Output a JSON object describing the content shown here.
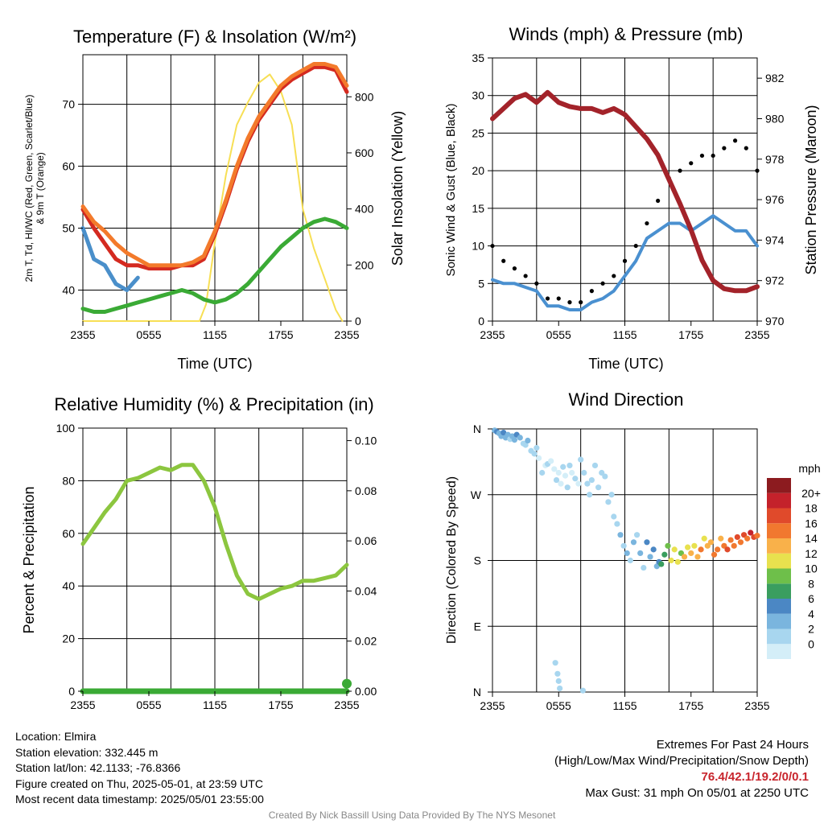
{
  "chart_data": [
    {
      "type": "line",
      "title": "Temperature (F) & Insolation (W/m²)",
      "xlabel": "Time (UTC)",
      "ylabel": "2m T, Td, HI/WC (Red, Green, Scarlet/Blue) & 9m T (Orange)",
      "y2label": "Solar Insolation (Yellow)",
      "x_ticks": [
        "2355",
        "0555",
        "1155",
        "1755",
        "2355"
      ],
      "ylim": [
        35,
        78
      ],
      "y_ticks": [
        40,
        50,
        60,
        70
      ],
      "y2lim": [
        0,
        950
      ],
      "y2_ticks": [
        0,
        200,
        400,
        600,
        800
      ],
      "series": [
        {
          "name": "2m T",
          "color": "#d42a20",
          "x": [
            0,
            1,
            2,
            3,
            4,
            5,
            6,
            7,
            8,
            9,
            10,
            11,
            12,
            13,
            14,
            15,
            16,
            17,
            18,
            19,
            20,
            21,
            22,
            23,
            24
          ],
          "values": [
            53,
            50,
            47.5,
            45,
            44,
            44,
            43.5,
            43.5,
            43.5,
            44,
            44,
            45,
            49,
            54,
            59.5,
            64,
            67.5,
            70,
            72.5,
            74,
            75,
            76,
            76,
            75.5,
            72
          ]
        },
        {
          "name": "Td",
          "color": "#3aaa35",
          "x": [
            0,
            1,
            2,
            3,
            4,
            5,
            6,
            7,
            8,
            9,
            10,
            11,
            12,
            13,
            14,
            15,
            16,
            17,
            18,
            19,
            20,
            21,
            22,
            23,
            24
          ],
          "values": [
            37,
            36.5,
            36.5,
            37,
            37.5,
            38,
            38.5,
            39,
            39.5,
            40,
            39.5,
            38.5,
            38,
            38.5,
            39.5,
            41,
            43,
            45,
            47,
            48.5,
            50,
            51,
            51.5,
            51,
            50
          ]
        },
        {
          "name": "HI/WC",
          "color": "#4a8fca",
          "x": [
            0,
            1,
            2,
            3,
            4,
            5
          ],
          "values": [
            50,
            45,
            44,
            41,
            40,
            42
          ]
        },
        {
          "name": "9m T",
          "color": "#f37a2b",
          "x": [
            0,
            1,
            2,
            3,
            4,
            5,
            6,
            7,
            8,
            9,
            10,
            11,
            12,
            13,
            14,
            15,
            16,
            17,
            18,
            19,
            20,
            21,
            22,
            23,
            24
          ],
          "values": [
            53.5,
            51,
            49.5,
            47.5,
            46,
            45,
            44,
            44,
            44,
            44,
            44.5,
            45.5,
            49.5,
            54.5,
            60,
            64.5,
            68,
            70.5,
            73,
            74.5,
            75.5,
            76.5,
            76.5,
            76,
            73
          ]
        },
        {
          "name": "Solar Insolation",
          "color": "#f7df55",
          "axis": "y2",
          "x": [
            0,
            5,
            8,
            10.6,
            11.2,
            12,
            13,
            14,
            15,
            16,
            17,
            18,
            19,
            20,
            21,
            22,
            23,
            23.6
          ],
          "values": [
            0,
            0,
            0,
            0,
            60,
            280,
            520,
            700,
            780,
            850,
            880,
            820,
            700,
            400,
            260,
            150,
            40,
            0
          ]
        }
      ]
    },
    {
      "type": "line",
      "title": "Winds (mph) & Pressure (mb)",
      "xlabel": "Time (UTC)",
      "ylabel": "Sonic Wind & Gust (Blue, Black)",
      "y2label": "Station Pressure (Maroon)",
      "x_ticks": [
        "2355",
        "0555",
        "1155",
        "1755",
        "2355"
      ],
      "ylim": [
        0,
        35
      ],
      "y_ticks": [
        0,
        5,
        10,
        15,
        20,
        25,
        30,
        35
      ],
      "y2lim": [
        970,
        983
      ],
      "y2_ticks": [
        970,
        972,
        974,
        976,
        978,
        980,
        982
      ],
      "series": [
        {
          "name": "Sonic Wind",
          "color": "#4a90d0",
          "x": [
            0,
            1,
            2,
            3,
            4,
            5,
            6,
            7,
            8,
            9,
            10,
            11,
            12,
            13,
            14,
            15,
            16,
            17,
            18,
            19,
            20,
            21,
            22,
            23,
            24
          ],
          "values": [
            5.5,
            5,
            5,
            4.5,
            4,
            2,
            2,
            1.5,
            1.5,
            2.5,
            3,
            4,
            6,
            8,
            11,
            12,
            13,
            13,
            12,
            13,
            14,
            13,
            12,
            12,
            10
          ]
        },
        {
          "name": "Gust",
          "color": "#000000",
          "marker": "dot",
          "x": [
            0,
            1,
            2,
            3,
            4,
            5,
            6,
            7,
            8,
            9,
            10,
            11,
            12,
            13,
            14,
            15,
            16,
            17,
            18,
            19,
            20,
            21,
            22,
            23,
            24
          ],
          "values": [
            10,
            8,
            7,
            6,
            5,
            3,
            3,
            2.5,
            2.5,
            4,
            5,
            6,
            8,
            10,
            13,
            16,
            19,
            20,
            21,
            22,
            22,
            23,
            24,
            23,
            20
          ]
        },
        {
          "name": "Station Pressure",
          "color": "#a3232a",
          "axis": "y2",
          "x": [
            0,
            1,
            2,
            3,
            4,
            5,
            6,
            7,
            8,
            9,
            10,
            11,
            12,
            13,
            14,
            15,
            16,
            17,
            18,
            19,
            20,
            21,
            22,
            23,
            24
          ],
          "values": [
            980,
            980.5,
            981,
            981.2,
            980.8,
            981.3,
            980.8,
            980.6,
            980.5,
            980.5,
            980.3,
            980.5,
            980.2,
            979.6,
            979,
            978.2,
            977,
            975.8,
            974.5,
            973,
            972,
            971.6,
            971.5,
            971.5,
            971.7
          ]
        }
      ]
    },
    {
      "type": "line",
      "title": "Relative Humidity (%) & Precipitation (in)",
      "xlabel": "",
      "ylabel": "Percent & Precipitation",
      "x_ticks": [
        "2355",
        "0555",
        "1155",
        "1755",
        "2355"
      ],
      "ylim": [
        0,
        100
      ],
      "y_ticks": [
        0,
        20,
        40,
        60,
        80,
        100
      ],
      "y2lim": [
        0,
        0.105
      ],
      "y2_ticks": [
        "0.00",
        "0.02",
        "0.04",
        "0.06",
        "0.08",
        "0.10"
      ],
      "series": [
        {
          "name": "Relative Humidity",
          "color": "#8cc63f",
          "x": [
            0,
            1,
            2,
            3,
            4,
            5,
            6,
            7,
            8,
            9,
            10,
            11,
            12,
            13,
            14,
            15,
            16,
            17,
            18,
            19,
            20,
            21,
            22,
            23,
            24
          ],
          "values": [
            56,
            62,
            68,
            73,
            80,
            81,
            83,
            85,
            84,
            86,
            86,
            80,
            70,
            56,
            44,
            37,
            35,
            37,
            39,
            40,
            42,
            42,
            43,
            44,
            48
          ]
        },
        {
          "name": "Precipitation",
          "color": "#3aaa35",
          "axis": "y2",
          "x": [
            0,
            24
          ],
          "values": [
            0,
            0
          ]
        }
      ]
    },
    {
      "type": "scatter",
      "title": "Wind Direction",
      "xlabel": "",
      "ylabel": "Direction (Colored By Speed)",
      "x_ticks": [
        "2355",
        "0555",
        "1155",
        "1755",
        "2355"
      ],
      "y_ticks": [
        "N",
        "E",
        "S",
        "W",
        "N"
      ],
      "ylim": [
        0,
        360
      ],
      "colorbar_title": "mph",
      "colorbar_labels": [
        "0",
        "2",
        "4",
        "6",
        "8",
        "10",
        "12",
        "14",
        "16",
        "18",
        "20+"
      ],
      "colorbar_colors": [
        "#d4eef8",
        "#a8d6ef",
        "#7ab5de",
        "#4b87c4",
        "#3a9e5f",
        "#6ebf4a",
        "#e8e14e",
        "#f9b14a",
        "#f1782f",
        "#e04a2b",
        "#c4222b",
        "#8c1b1f"
      ],
      "points": [
        [
          0.2,
          358,
          4
        ],
        [
          0.4,
          356,
          6
        ],
        [
          0.6,
          354,
          4
        ],
        [
          0.8,
          350,
          5
        ],
        [
          1,
          355,
          6
        ],
        [
          1.2,
          348,
          4
        ],
        [
          1.4,
          352,
          5
        ],
        [
          1.6,
          346,
          3
        ],
        [
          1.8,
          350,
          4
        ],
        [
          2,
          345,
          5
        ],
        [
          2.2,
          352,
          6
        ],
        [
          2.5,
          348,
          4
        ],
        [
          2.8,
          340,
          3
        ],
        [
          3,
          338,
          2
        ],
        [
          3.2,
          344,
          4
        ],
        [
          3.5,
          330,
          2
        ],
        [
          3.8,
          326,
          3
        ],
        [
          4,
          334,
          2
        ],
        [
          4.2,
          320,
          1
        ],
        [
          4.5,
          300,
          2
        ],
        [
          4.8,
          310,
          1
        ],
        [
          5,
          312,
          2
        ],
        [
          5.3,
          316,
          1
        ],
        [
          5.6,
          305,
          1
        ],
        [
          5.8,
          290,
          2
        ],
        [
          6,
          300,
          1
        ],
        [
          6.2,
          285,
          1
        ],
        [
          6.4,
          308,
          2
        ],
        [
          6.6,
          296,
          1
        ],
        [
          6.8,
          280,
          2
        ],
        [
          7,
          310,
          2
        ],
        [
          7.2,
          300,
          1
        ],
        [
          7.5,
          292,
          2
        ],
        [
          7.8,
          285,
          1
        ],
        [
          8,
          318,
          2
        ],
        [
          8.3,
          300,
          2
        ],
        [
          8.6,
          285,
          2
        ],
        [
          8.8,
          270,
          2
        ],
        [
          9,
          290,
          2
        ],
        [
          9.3,
          310,
          2
        ],
        [
          9.6,
          280,
          2
        ],
        [
          9.9,
          300,
          2
        ],
        [
          10.2,
          295,
          2
        ],
        [
          10.5,
          260,
          2
        ],
        [
          10.8,
          270,
          3
        ],
        [
          11,
          240,
          2
        ],
        [
          11.3,
          230,
          3
        ],
        [
          11.6,
          215,
          4
        ],
        [
          11.9,
          200,
          3
        ],
        [
          12.2,
          190,
          4
        ],
        [
          12.5,
          180,
          3
        ],
        [
          12.8,
          205,
          4
        ],
        [
          13.1,
          215,
          3
        ],
        [
          13.4,
          190,
          4
        ],
        [
          13.7,
          170,
          3
        ],
        [
          14,
          205,
          6
        ],
        [
          14.3,
          185,
          5
        ],
        [
          14.6,
          195,
          6
        ],
        [
          14.9,
          172,
          5
        ],
        [
          15.1,
          178,
          6
        ],
        [
          15.3,
          175,
          8
        ],
        [
          15.6,
          188,
          9
        ],
        [
          15.9,
          200,
          10
        ],
        [
          16.2,
          180,
          12
        ],
        [
          16.5,
          195,
          12
        ],
        [
          16.8,
          178,
          13
        ],
        [
          17.1,
          190,
          11
        ],
        [
          17.4,
          185,
          14
        ],
        [
          17.7,
          198,
          12
        ],
        [
          18,
          190,
          15
        ],
        [
          18.3,
          200,
          13
        ],
        [
          18.6,
          185,
          14
        ],
        [
          18.9,
          195,
          16
        ],
        [
          19.2,
          210,
          12
        ],
        [
          19.5,
          200,
          14
        ],
        [
          19.8,
          205,
          15
        ],
        [
          20.1,
          188,
          16
        ],
        [
          20.4,
          195,
          17
        ],
        [
          20.7,
          210,
          15
        ],
        [
          21,
          200,
          16
        ],
        [
          21.3,
          195,
          18
        ],
        [
          21.6,
          208,
          16
        ],
        [
          21.9,
          200,
          17
        ],
        [
          22.2,
          212,
          18
        ],
        [
          22.5,
          205,
          17
        ],
        [
          22.8,
          215,
          18
        ],
        [
          23.1,
          210,
          16
        ],
        [
          23.4,
          218,
          20
        ],
        [
          23.7,
          212,
          18
        ],
        [
          24,
          214,
          17
        ],
        [
          5.7,
          40,
          3
        ],
        [
          5.9,
          25,
          3
        ],
        [
          6,
          15,
          2
        ],
        [
          6.1,
          5,
          3
        ],
        [
          8.2,
          2,
          2
        ]
      ]
    }
  ],
  "panel_titles": {
    "temp": "Temperature (F) & Insolation (W/m²)",
    "wind": "Winds (mph) & Pressure (mb)",
    "rh": "Relative Humidity (%) & Precipitation (in)",
    "dir": "Wind Direction"
  },
  "axis_labels": {
    "time_utc": "Time (UTC)",
    "temp_left": "2m T, Td, HI/WC (Red, Green, Scarlet/Blue)",
    "temp_left2": "& 9m T (Orange)",
    "temp_right": "Solar Insolation (Yellow)",
    "wind_left": "Sonic Wind & Gust (Blue, Black)",
    "wind_right": "Station Pressure (Maroon)",
    "rh_left": "Percent & Precipitation",
    "dir_left": "Direction (Colored By Speed)",
    "colorbar_title": "mph"
  },
  "footer": {
    "location": "Location: Elmira",
    "elevation": "Station elevation: 332.445 m",
    "latlon": "Station lat/lon: 42.1133; -76.8366",
    "created": "Figure created on Thu, 2025-05-01, at 23:59 UTC",
    "recent": "Most recent data timestamp: 2025/05/01 23:55:00",
    "extremes_title": "Extremes For Past 24 Hours",
    "extremes_desc": "(High/Low/Max Wind/Precipitation/Snow Depth)",
    "extremes_values": "76.4/42.1/19.2/0/0.1",
    "max_gust": "Max Gust: 31 mph On 05/01 at 2250 UTC",
    "credit": "Created By Nick Bassill Using Data Provided By The NYS Mesonet"
  }
}
